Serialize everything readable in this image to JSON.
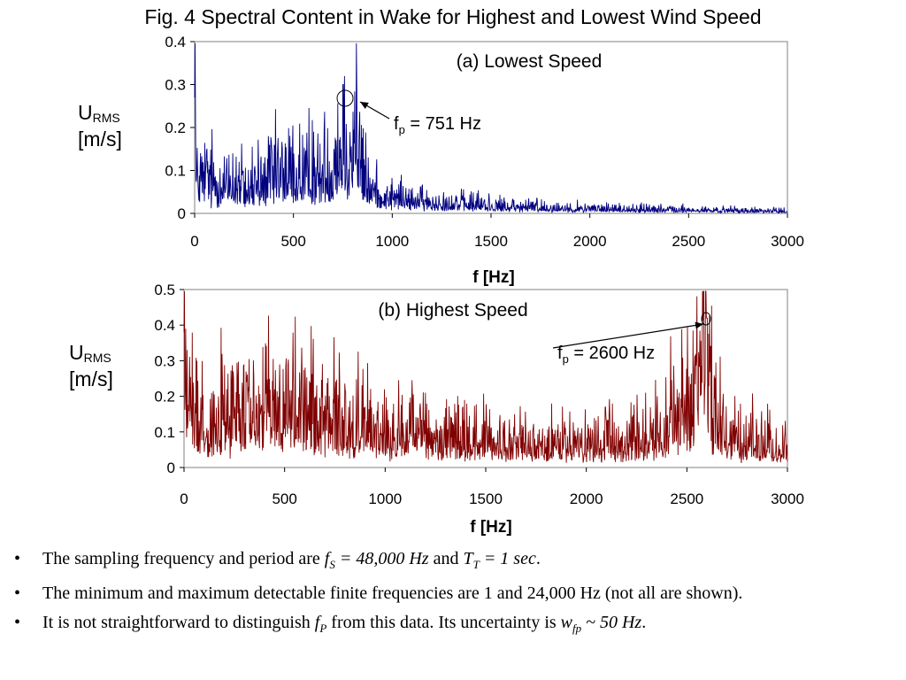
{
  "slide": {
    "title": "Fig. 4 Spectral Content in Wake for Highest and Lowest Wind Speed"
  },
  "chart_data": [
    {
      "type": "line",
      "title": "(a) Lowest Speed",
      "xlabel": "f [Hz]",
      "ylabel": {
        "main": "U",
        "sub": "RMS",
        "unit": "[m/s]"
      },
      "xlim": [
        0,
        3000
      ],
      "ylim": [
        0,
        0.4
      ],
      "xticks": [
        "0",
        "500",
        "1000",
        "1500",
        "2000",
        "2500",
        "3000"
      ],
      "yticks": [
        "0",
        "0.1",
        "0.2",
        "0.3",
        "0.4"
      ],
      "grid": false,
      "color": "#000080",
      "annotation": {
        "label_main": "f",
        "label_sub": "p",
        "label_rest": " = 751 Hz",
        "x": 751,
        "y": 0.3
      },
      "envelope": {
        "x": [
          0,
          10,
          50,
          100,
          200,
          300,
          400,
          500,
          600,
          700,
          730,
          760,
          790,
          820,
          850,
          900,
          1000,
          1100,
          1200,
          1400,
          1600,
          1800,
          2000,
          2300,
          2600,
          3000
        ],
        "y": [
          0.27,
          0.1,
          0.08,
          0.07,
          0.065,
          0.07,
          0.08,
          0.085,
          0.09,
          0.1,
          0.14,
          0.17,
          0.15,
          0.18,
          0.08,
          0.05,
          0.035,
          0.028,
          0.025,
          0.02,
          0.016,
          0.013,
          0.011,
          0.009,
          0.007,
          0.005
        ]
      }
    },
    {
      "type": "line",
      "title": "(b) Highest Speed",
      "xlabel": "f [Hz]",
      "ylabel": {
        "main": "U",
        "sub": "RMS",
        "unit": "[m/s]"
      },
      "xlim": [
        0,
        3000
      ],
      "ylim": [
        0,
        0.5
      ],
      "xticks": [
        "0",
        "500",
        "1000",
        "1500",
        "2000",
        "2500",
        "3000"
      ],
      "yticks": [
        "0",
        "0.1",
        "0.2",
        "0.3",
        "0.4",
        "0.5"
      ],
      "grid": false,
      "color": "#800000",
      "annotation": {
        "label_main": "f",
        "label_sub": "p",
        "label_rest": " = 2600 Hz",
        "x": 2600,
        "y": 0.42
      },
      "envelope": {
        "x": [
          0,
          10,
          50,
          100,
          200,
          300,
          400,
          500,
          600,
          700,
          800,
          900,
          1000,
          1200,
          1400,
          1600,
          1800,
          2000,
          2200,
          2350,
          2450,
          2550,
          2580,
          2600,
          2620,
          2650,
          2700,
          2800,
          3000
        ],
        "y": [
          0.38,
          0.2,
          0.15,
          0.14,
          0.14,
          0.15,
          0.16,
          0.15,
          0.15,
          0.14,
          0.12,
          0.11,
          0.1,
          0.09,
          0.08,
          0.065,
          0.06,
          0.06,
          0.075,
          0.1,
          0.13,
          0.2,
          0.3,
          0.42,
          0.18,
          0.13,
          0.09,
          0.07,
          0.05
        ]
      }
    }
  ],
  "bullets": {
    "b1": {
      "dot": "•",
      "t1": "The sampling frequency and period are ",
      "fs": "f",
      "fs_sub": "S",
      "fs_val": " = 48,000 Hz",
      "t2": " and ",
      "tt": "T",
      "tt_sub": "T",
      "tt_val": " = 1 sec",
      "t3": "."
    },
    "b2": {
      "dot": "•",
      "text": "The minimum and maximum detectable finite frequencies are 1 and 24,000 Hz (not all are shown)."
    },
    "b3": {
      "dot": "•",
      "t1": " It is not straightforward to distinguish ",
      "fp": "f",
      "fp_sub": "P",
      "t2": " from this data.  Its uncertainty is ",
      "w": "w",
      "w_sub": "fp",
      "w_val": " ~ 50 Hz",
      "t3": "."
    }
  }
}
